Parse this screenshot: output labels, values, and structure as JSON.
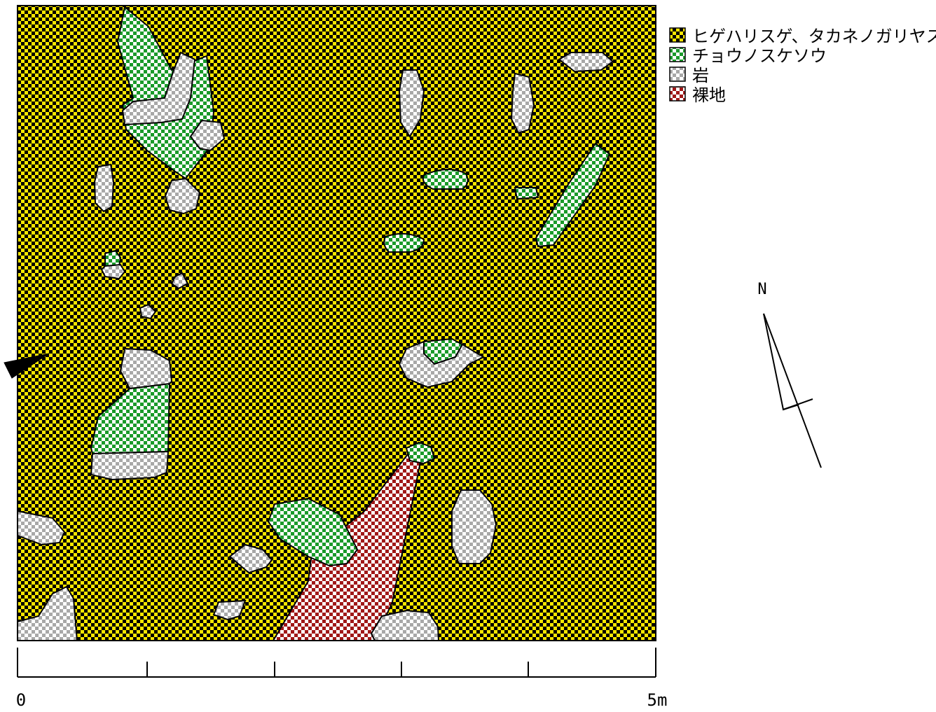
{
  "legend": {
    "items": [
      {
        "label": "ヒゲハリスゲ、タカネノガリヤス",
        "pattern": "grass-pattern",
        "color": "#f7e600"
      },
      {
        "label": "チョウノスケソウ",
        "pattern": "dryas-pattern",
        "color": "#1a9a2a"
      },
      {
        "label": "岩",
        "pattern": "rock-pattern",
        "color": "#b8b8b8"
      },
      {
        "label": "裸地",
        "pattern": "bare-pattern",
        "color": "#a01818"
      }
    ]
  },
  "scale": {
    "start_label": "0",
    "end_label": "5m",
    "divisions": 5
  },
  "north": {
    "label": "N"
  },
  "colors": {
    "checker_dark": "#000000",
    "outline": "#000000"
  }
}
